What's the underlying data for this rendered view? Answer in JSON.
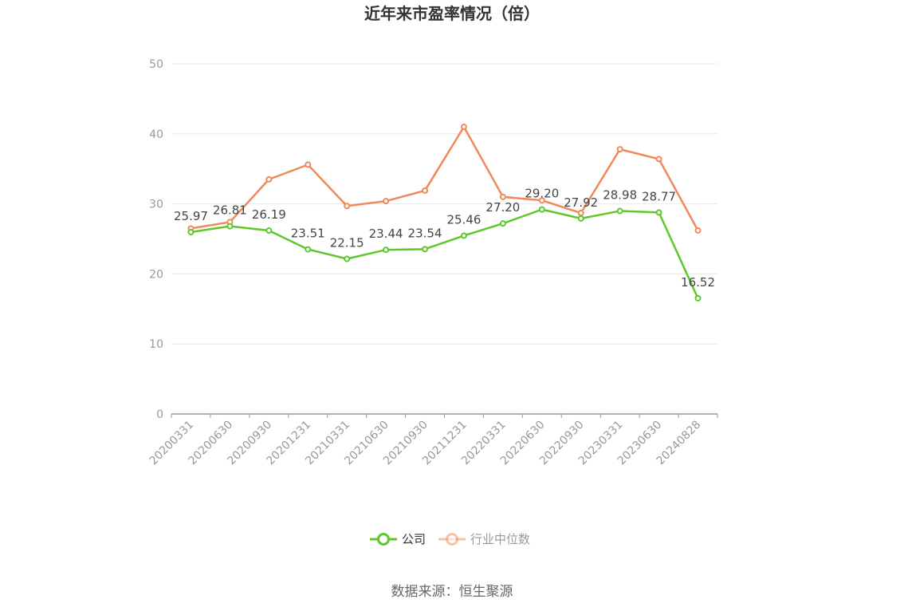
{
  "chart_data": {
    "type": "line",
    "title": "近年来市盈率情况（倍）",
    "categories": [
      "20200331",
      "20200630",
      "20200930",
      "20201231",
      "20210331",
      "20210630",
      "20210930",
      "20211231",
      "20220331",
      "20220630",
      "20220930",
      "20230331",
      "20230630",
      "20240828"
    ],
    "yticks": [
      "0",
      "10",
      "20",
      "30",
      "40",
      "50"
    ],
    "ylim": [
      0,
      50
    ],
    "grid": true,
    "legend_position": "bottom",
    "series": [
      {
        "name": "公司",
        "color": "#5ec82b",
        "values": [
          25.97,
          26.81,
          26.19,
          23.51,
          22.15,
          23.44,
          23.54,
          25.46,
          27.2,
          29.2,
          27.92,
          28.98,
          28.77,
          16.52
        ],
        "labels": [
          "25.97",
          "26.81",
          "26.19",
          "23.51",
          "22.15",
          "23.44",
          "23.54",
          "25.46",
          "27.20",
          "29.20",
          "27.92",
          "28.98",
          "28.77",
          "16.52"
        ]
      },
      {
        "name": "行业中位数",
        "color": "#f0895a",
        "values": [
          26.5,
          27.4,
          33.5,
          35.6,
          29.7,
          30.4,
          31.9,
          41.0,
          31.0,
          30.5,
          28.7,
          37.8,
          36.4,
          26.2
        ]
      }
    ],
    "source": "数据来源：恒生聚源"
  }
}
